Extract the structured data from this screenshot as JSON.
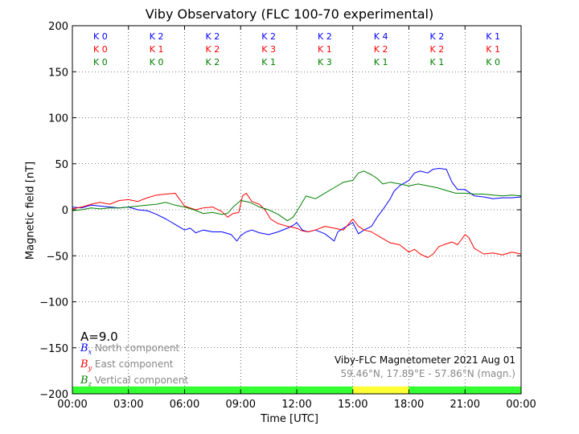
{
  "chart_data": {
    "type": "line",
    "title": "Viby Observatory (FLC 100-70 experimental)",
    "xlabel": "Time [UTC]",
    "ylabel": "Magnetic field [nT]",
    "ylim": [
      -200,
      200
    ],
    "yticks": [
      200,
      150,
      100,
      50,
      0,
      -50,
      -100,
      -150,
      -200
    ],
    "yticklabels": [
      "200",
      "150",
      "100",
      "50",
      "0",
      "−50",
      "−100",
      "−150",
      "−200"
    ],
    "xlim": [
      0,
      24
    ],
    "xticks": [
      0,
      3,
      6,
      9,
      12,
      15,
      18,
      21,
      24
    ],
    "xticklabels": [
      "00:00",
      "03:00",
      "06:00",
      "09:00",
      "12:00",
      "15:00",
      "18:00",
      "21:00",
      "00:00"
    ],
    "grid": true,
    "series": [
      {
        "name": "North component",
        "color": "#0000ff",
        "x": [
          0,
          0.5,
          1,
          1.5,
          2,
          2.5,
          3,
          3.5,
          4,
          4.5,
          5,
          5.5,
          6,
          6.3,
          6.6,
          7,
          7.5,
          8,
          8.5,
          8.8,
          9,
          9.3,
          9.6,
          10,
          10.5,
          11,
          11.5,
          11.8,
          12,
          12.3,
          12.6,
          13,
          13.5,
          14,
          14.2,
          14.5,
          15,
          15.3,
          15.6,
          16,
          16.3,
          16.6,
          17,
          17.2,
          17.5,
          18,
          18.3,
          18.6,
          19,
          19.3,
          19.6,
          20,
          20.3,
          20.6,
          21,
          21.5,
          22,
          22.5,
          23,
          23.5,
          24
        ],
        "y": [
          3,
          2,
          5,
          4,
          3,
          2,
          3,
          0,
          -1,
          -5,
          -10,
          -16,
          -22,
          -20,
          -25,
          -22,
          -24,
          -24,
          -27,
          -34,
          -28,
          -24,
          -22,
          -25,
          -27,
          -24,
          -20,
          -17,
          -14,
          -22,
          -24,
          -22,
          -26,
          -34,
          -24,
          -20,
          -14,
          -26,
          -22,
          -18,
          -8,
          0,
          12,
          20,
          26,
          32,
          40,
          42,
          40,
          44,
          45,
          44,
          30,
          22,
          22,
          15,
          14,
          12,
          13,
          13,
          14
        ]
      },
      {
        "name": "East component",
        "color": "#ff0000",
        "x": [
          0,
          0.5,
          1,
          1.5,
          2,
          2.5,
          3,
          3.5,
          4,
          4.5,
          5,
          5.5,
          6,
          6.3,
          6.6,
          7,
          7.5,
          8,
          8.3,
          8.6,
          8.9,
          9.1,
          9.3,
          9.6,
          10,
          10.3,
          10.6,
          11,
          11.5,
          12,
          12.3,
          12.6,
          13,
          13.5,
          14,
          14.5,
          15,
          15.3,
          15.6,
          16,
          16.5,
          17,
          17.5,
          18,
          18.3,
          18.6,
          19,
          19.3,
          19.6,
          20,
          20.3,
          20.6,
          21,
          21.2,
          21.5,
          22,
          22.5,
          23,
          23.5,
          24
        ],
        "y": [
          1,
          3,
          6,
          8,
          6,
          10,
          11,
          9,
          13,
          16,
          17,
          18,
          4,
          2,
          0,
          2,
          3,
          -2,
          -8,
          -4,
          -3,
          15,
          18,
          9,
          6,
          0,
          -10,
          -15,
          -18,
          -20,
          -23,
          -24,
          -22,
          -18,
          -20,
          -22,
          -10,
          -18,
          -22,
          -24,
          -30,
          -36,
          -38,
          -46,
          -43,
          -48,
          -52,
          -48,
          -40,
          -37,
          -35,
          -38,
          -27,
          -30,
          -42,
          -48,
          -47,
          -49,
          -46,
          -48
        ]
      },
      {
        "name": "Vertical component",
        "color": "#008000",
        "x": [
          0,
          0.5,
          1,
          1.5,
          2,
          2.5,
          3,
          3.5,
          4,
          4.5,
          5,
          5.5,
          6,
          6.5,
          7,
          7.5,
          8,
          8.3,
          8.6,
          9,
          9.5,
          10,
          10.5,
          11,
          11.5,
          11.8,
          12,
          12.5,
          13,
          13.5,
          14,
          14.5,
          15,
          15.3,
          15.6,
          16,
          16.3,
          16.6,
          17,
          17.5,
          18,
          18.5,
          19,
          19.5,
          20,
          20.5,
          21,
          21.5,
          22,
          22.5,
          23,
          23.5,
          24
        ],
        "y": [
          -1,
          0,
          2,
          1,
          2,
          2,
          3,
          4,
          5,
          6,
          8,
          5,
          3,
          0,
          -4,
          -3,
          -5,
          -4,
          3,
          10,
          8,
          3,
          0,
          -5,
          -12,
          -8,
          -2,
          15,
          12,
          18,
          24,
          30,
          32,
          40,
          42,
          38,
          34,
          28,
          30,
          28,
          26,
          28,
          26,
          24,
          21,
          18,
          18,
          17,
          17,
          16,
          15,
          16,
          15
        ]
      }
    ],
    "k_index": {
      "North component": [
        "K 0",
        "K 2",
        "K 2",
        "K 2",
        "K 2",
        "K 4",
        "K 2",
        "K 1"
      ],
      "East component": [
        "K 0",
        "K 1",
        "K 2",
        "K 3",
        "K 1",
        "K 2",
        "K 2",
        "K 1"
      ],
      "Vertical component": [
        "K 0",
        "K 0",
        "K 2",
        "K 1",
        "K 3",
        "K 1",
        "K 1",
        "K 0"
      ]
    },
    "activity_bar": {
      "segments": [
        {
          "from": 0,
          "to": 15,
          "color": "#33ff33"
        },
        {
          "from": 15,
          "to": 18,
          "color": "#ffff33"
        },
        {
          "from": 18,
          "to": 24,
          "color": "#33ff33"
        }
      ]
    }
  },
  "a_index": "A=9.0",
  "legend": [
    {
      "symbol": "B",
      "sub": "x",
      "label": "North component",
      "color": "#0000ff"
    },
    {
      "symbol": "B",
      "sub": "y",
      "label": "East component",
      "color": "#ff0000"
    },
    {
      "symbol": "B",
      "sub": "z",
      "label": "Vertical component",
      "color": "#008000"
    }
  ],
  "info": {
    "line1": "Viby-FLC Magnetometer 2021 Aug 01",
    "line2": "59.46°N, 17.89°E - 57.86°N (magn.)"
  }
}
